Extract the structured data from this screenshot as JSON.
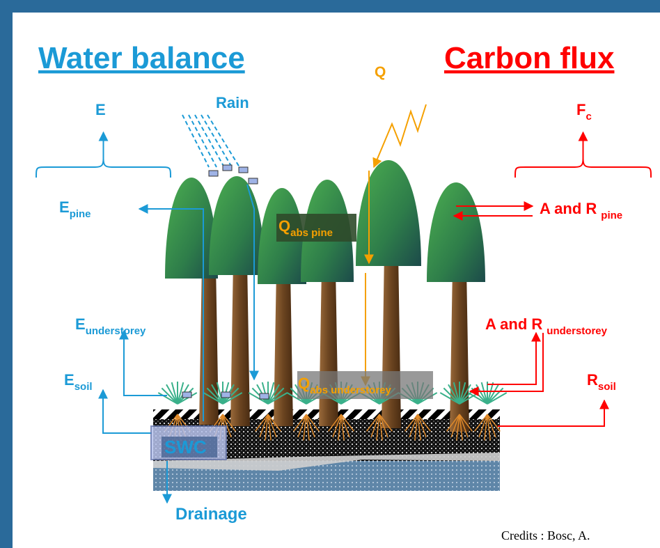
{
  "header": {
    "water_title": "Water balance",
    "carbon_title": "Carbon flux"
  },
  "labels": {
    "q": "Q",
    "e": "E",
    "rain": "Rain",
    "fc": {
      "main": "F",
      "sub": "c"
    },
    "e_pine": {
      "main": "E",
      "sub": "pine"
    },
    "q_abs_pine": {
      "main": "Q",
      "sub": "abs pine"
    },
    "ar_pine": {
      "main": "A and R",
      "sub": "pine"
    },
    "e_understorey": {
      "main": "E",
      "sub": "understorey"
    },
    "ar_understorey": {
      "main": "A and R",
      "sub": "understorey"
    },
    "e_soil": {
      "main": "E",
      "sub": "soil"
    },
    "q_abs_understorey": {
      "main": "Q",
      "sub": "abs understorey"
    },
    "r_soil": {
      "main": "R",
      "sub": "soil"
    },
    "swc": "SWC",
    "drainage": "Drainage"
  },
  "credits": "Credits : Bosc, A."
}
